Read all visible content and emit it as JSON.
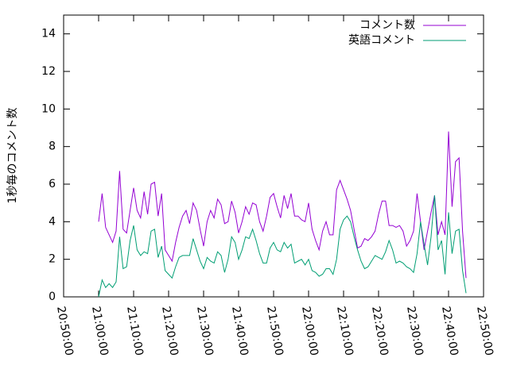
{
  "chart_data": {
    "type": "line",
    "ylabel": "1秒毎のコメント数",
    "x": [
      "21:00:00",
      "21:01:00",
      "21:02:00",
      "21:03:00",
      "21:04:00",
      "21:05:00",
      "21:06:00",
      "21:07:00",
      "21:08:00",
      "21:09:00",
      "21:10:00",
      "21:11:00",
      "21:12:00",
      "21:13:00",
      "21:14:00",
      "21:15:00",
      "21:16:00",
      "21:17:00",
      "21:18:00",
      "21:19:00",
      "21:20:00",
      "21:21:00",
      "21:22:00",
      "21:23:00",
      "21:24:00",
      "21:25:00",
      "21:26:00",
      "21:27:00",
      "21:28:00",
      "21:29:00",
      "21:30:00",
      "21:31:00",
      "21:32:00",
      "21:33:00",
      "21:34:00",
      "21:35:00",
      "21:36:00",
      "21:37:00",
      "21:38:00",
      "21:39:00",
      "21:40:00",
      "21:41:00",
      "21:42:00",
      "21:43:00",
      "21:44:00",
      "21:45:00",
      "21:46:00",
      "21:47:00",
      "21:48:00",
      "21:49:00",
      "21:50:00",
      "21:51:00",
      "21:52:00",
      "21:53:00",
      "21:54:00",
      "21:55:00",
      "21:56:00",
      "21:57:00",
      "21:58:00",
      "21:59:00",
      "22:00:00",
      "22:01:00",
      "22:02:00",
      "22:03:00",
      "22:04:00",
      "22:05:00",
      "22:06:00",
      "22:07:00",
      "22:08:00",
      "22:09:00",
      "22:10:00",
      "22:11:00",
      "22:12:00",
      "22:13:00",
      "22:14:00",
      "22:15:00",
      "22:16:00",
      "22:17:00",
      "22:18:00",
      "22:19:00",
      "22:20:00",
      "22:21:00",
      "22:22:00",
      "22:23:00",
      "22:24:00",
      "22:25:00",
      "22:26:00",
      "22:27:00",
      "22:28:00",
      "22:29:00",
      "22:30:00",
      "22:31:00",
      "22:32:00",
      "22:33:00",
      "22:34:00",
      "22:35:00",
      "22:36:00",
      "22:37:00",
      "22:38:00",
      "22:39:00",
      "22:40:00",
      "22:41:00",
      "22:42:00",
      "22:43:00",
      "22:44:00",
      "22:45:00"
    ],
    "series": [
      {
        "name": "コメント数",
        "color": "#9400d3",
        "values": [
          4.0,
          5.5,
          3.7,
          3.3,
          2.9,
          3.5,
          6.7,
          3.6,
          3.4,
          4.6,
          5.8,
          4.6,
          4.2,
          5.6,
          4.4,
          6.0,
          6.1,
          4.3,
          5.5,
          2.5,
          2.2,
          1.9,
          2.9,
          3.7,
          4.3,
          4.6,
          3.9,
          5.0,
          4.6,
          3.6,
          2.7,
          4.0,
          4.6,
          4.2,
          5.2,
          4.9,
          3.9,
          4.0,
          5.1,
          4.5,
          3.4,
          4.0,
          4.8,
          4.4,
          5.0,
          4.9,
          4.0,
          3.5,
          4.3,
          5.3,
          5.5,
          4.8,
          4.2,
          5.4,
          4.7,
          5.5,
          4.3,
          4.3,
          4.1,
          4.0,
          5.0,
          3.6,
          3.0,
          2.5,
          3.5,
          4.0,
          3.3,
          3.3,
          5.7,
          6.2,
          5.7,
          5.2,
          4.6,
          3.6,
          2.6,
          2.7,
          3.1,
          3.0,
          3.2,
          3.5,
          4.4,
          5.1,
          5.1,
          3.8,
          3.8,
          3.7,
          3.8,
          3.5,
          2.7,
          3.0,
          3.5,
          5.5,
          4.0,
          2.5,
          3.5,
          4.5,
          5.4,
          3.3,
          4.0,
          3.3,
          8.8,
          4.8,
          7.2,
          7.4,
          3.5,
          1.0
        ]
      },
      {
        "name": "英語コメント",
        "color": "#009e73",
        "values": [
          0,
          0.9,
          0.5,
          0.7,
          0.5,
          0.8,
          3.2,
          1.5,
          1.6,
          3.0,
          3.8,
          2.5,
          2.2,
          2.4,
          2.3,
          3.5,
          3.6,
          2.1,
          2.7,
          1.4,
          1.2,
          1.0,
          1.6,
          2.1,
          2.2,
          2.2,
          2.2,
          3.1,
          2.5,
          1.9,
          1.5,
          2.1,
          1.9,
          1.8,
          2.4,
          2.2,
          1.3,
          2.0,
          3.2,
          2.9,
          2.0,
          2.5,
          3.2,
          3.1,
          3.6,
          3.0,
          2.3,
          1.8,
          1.8,
          2.6,
          2.9,
          2.5,
          2.4,
          2.9,
          2.6,
          2.8,
          1.8,
          1.9,
          2.0,
          1.7,
          2.0,
          1.4,
          1.3,
          1.1,
          1.2,
          1.5,
          1.5,
          1.2,
          2.0,
          3.6,
          4.1,
          4.3,
          4.0,
          3.2,
          2.5,
          1.9,
          1.5,
          1.6,
          1.9,
          2.2,
          2.1,
          2.0,
          2.4,
          3.0,
          2.5,
          1.8,
          1.9,
          1.8,
          1.6,
          1.5,
          1.3,
          2.3,
          4.0,
          2.8,
          1.7,
          3.2,
          5.4,
          2.5,
          3.0,
          1.2,
          4.5,
          2.3,
          3.5,
          3.6,
          1.4,
          0.2
        ]
      }
    ],
    "xlim": [
      "20:50:00",
      "22:50:00"
    ],
    "xticks": [
      "20:50:00",
      "21:00:00",
      "21:10:00",
      "21:20:00",
      "21:30:00",
      "21:40:00",
      "21:50:00",
      "22:00:00",
      "22:10:00",
      "22:20:00",
      "22:30:00",
      "22:40:00",
      "22:50:00"
    ],
    "ylim": [
      0,
      15
    ],
    "yticks": [
      0,
      2,
      4,
      6,
      8,
      10,
      12,
      14
    ],
    "legend": "top-right"
  }
}
